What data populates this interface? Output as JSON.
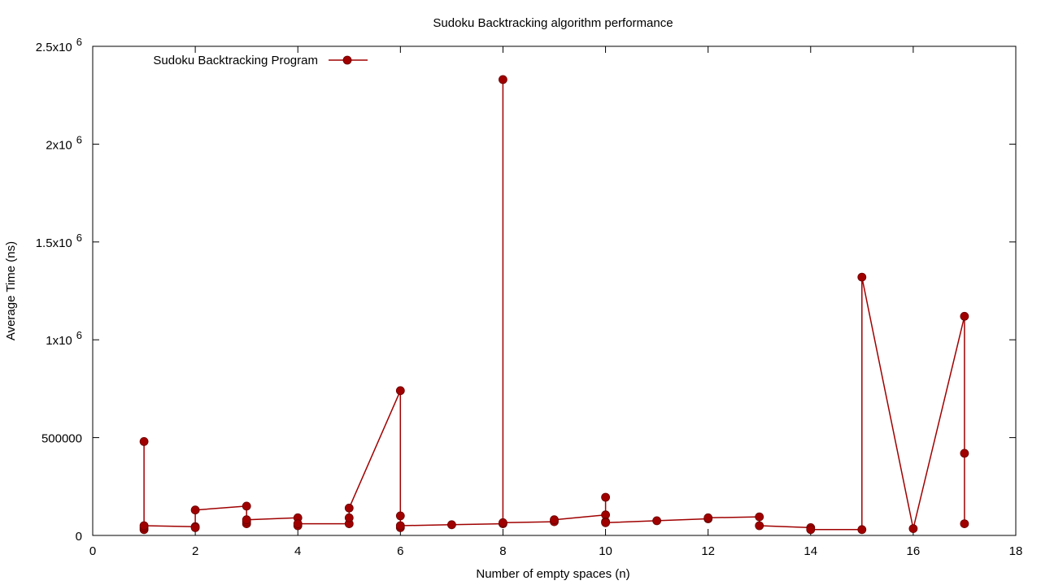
{
  "chart_data": {
    "type": "line",
    "title": "Sudoku Backtracking algorithm performance",
    "xlabel": "Number of empty spaces (n)",
    "ylabel": "Average Time (ns)",
    "xlim": [
      0,
      18
    ],
    "ylim": [
      0,
      2500000
    ],
    "x_ticks": [
      {
        "value": 0,
        "label": "0"
      },
      {
        "value": 2,
        "label": "2"
      },
      {
        "value": 4,
        "label": "4"
      },
      {
        "value": 6,
        "label": "6"
      },
      {
        "value": 8,
        "label": "8"
      },
      {
        "value": 10,
        "label": "10"
      },
      {
        "value": 12,
        "label": "12"
      },
      {
        "value": 14,
        "label": "14"
      },
      {
        "value": 16,
        "label": "16"
      },
      {
        "value": 18,
        "label": "18"
      }
    ],
    "y_ticks": [
      {
        "value": 0,
        "label": "0"
      },
      {
        "value": 500000,
        "label": "500000"
      },
      {
        "value": 1000000,
        "label": "1x10",
        "exp": "6"
      },
      {
        "value": 1500000,
        "label": "1.5x10",
        "exp": "6"
      },
      {
        "value": 2000000,
        "label": "2x10",
        "exp": "6"
      },
      {
        "value": 2500000,
        "label": "2.5x10",
        "exp": "6"
      }
    ],
    "grid": false,
    "legend_position": "top-left",
    "series": [
      {
        "name": "Sudoku Backtracking Program",
        "color": "#a00000",
        "points": [
          [
            1,
            480000
          ],
          [
            1,
            30000
          ],
          [
            1,
            40000
          ],
          [
            1,
            50000
          ],
          [
            2,
            45000
          ],
          [
            2,
            40000
          ],
          [
            2,
            130000
          ],
          [
            3,
            150000
          ],
          [
            3,
            60000
          ],
          [
            3,
            70000
          ],
          [
            3,
            80000
          ],
          [
            4,
            90000
          ],
          [
            4,
            50000
          ],
          [
            4,
            60000
          ],
          [
            5,
            60000
          ],
          [
            5,
            90000
          ],
          [
            5,
            140000
          ],
          [
            6,
            740000
          ],
          [
            6,
            100000
          ],
          [
            6,
            40000
          ],
          [
            6,
            50000
          ],
          [
            7,
            55000
          ],
          [
            8,
            60000
          ],
          [
            8,
            2330000
          ],
          [
            8,
            65000
          ],
          [
            9,
            70000
          ],
          [
            9,
            80000
          ],
          [
            10,
            105000
          ],
          [
            10,
            195000
          ],
          [
            10,
            70000
          ],
          [
            10,
            65000
          ],
          [
            11,
            75000
          ],
          [
            12,
            85000
          ],
          [
            12,
            90000
          ],
          [
            13,
            95000
          ],
          [
            13,
            50000
          ],
          [
            14,
            40000
          ],
          [
            14,
            30000
          ],
          [
            15,
            30000
          ],
          [
            15,
            1320000
          ],
          [
            16,
            35000
          ],
          [
            17,
            1120000
          ],
          [
            17,
            420000
          ],
          [
            17,
            60000
          ]
        ]
      }
    ]
  }
}
